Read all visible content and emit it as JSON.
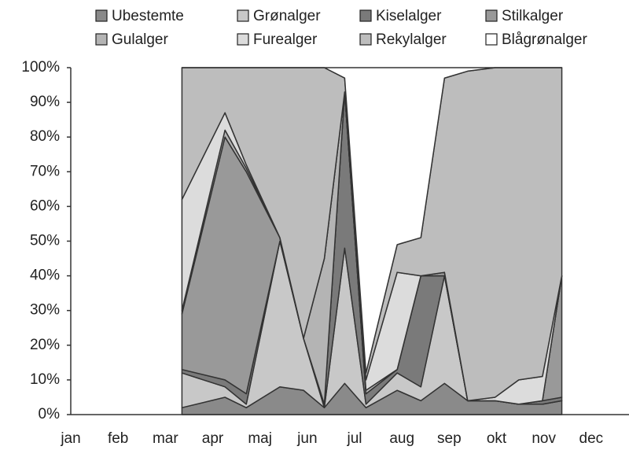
{
  "chart_data": {
    "type": "stacked_area",
    "x": [
      3.35,
      4.26,
      4.71,
      5.42,
      5.92,
      6.36,
      6.79,
      7.24,
      7.9,
      8.4,
      8.9,
      9.39,
      9.97,
      10.47,
      10.97,
      11.38
    ],
    "xlim": [
      1,
      12.8
    ],
    "xticks": [
      {
        "value": 1,
        "label": "jan"
      },
      {
        "value": 2,
        "label": "feb"
      },
      {
        "value": 3,
        "label": "mar"
      },
      {
        "value": 4,
        "label": "apr"
      },
      {
        "value": 5,
        "label": "maj"
      },
      {
        "value": 6,
        "label": "jun"
      },
      {
        "value": 7,
        "label": "jul"
      },
      {
        "value": 8,
        "label": "aug"
      },
      {
        "value": 9,
        "label": "sep"
      },
      {
        "value": 10,
        "label": "okt"
      },
      {
        "value": 11,
        "label": "nov"
      },
      {
        "value": 12,
        "label": "dec"
      }
    ],
    "ylim": [
      0,
      100
    ],
    "yticks": [
      {
        "value": 0,
        "label": "0%"
      },
      {
        "value": 10,
        "label": "10%"
      },
      {
        "value": 20,
        "label": "20%"
      },
      {
        "value": 30,
        "label": "30%"
      },
      {
        "value": 40,
        "label": "40%"
      },
      {
        "value": 50,
        "label": "50%"
      },
      {
        "value": 60,
        "label": "60%"
      },
      {
        "value": 70,
        "label": "70%"
      },
      {
        "value": 80,
        "label": "80%"
      },
      {
        "value": 90,
        "label": "90%"
      },
      {
        "value": 100,
        "label": "100%"
      }
    ],
    "series": [
      {
        "name": "Ubestemte",
        "color": "#8a8a8a",
        "values": [
          2,
          5,
          2,
          8,
          7,
          2,
          9,
          2,
          7,
          4,
          9,
          4,
          4,
          3,
          3,
          4
        ]
      },
      {
        "name": "Grønalger",
        "color": "#c8c8c8",
        "values": [
          10,
          3,
          1,
          42,
          15,
          0,
          39,
          1,
          5,
          4,
          31,
          0,
          0,
          0,
          0,
          0
        ]
      },
      {
        "name": "Kiselalger",
        "color": "#7a7a7a",
        "values": [
          1,
          2,
          3,
          0,
          0,
          1,
          45,
          3,
          1,
          32,
          0,
          0,
          0,
          0,
          1,
          1
        ]
      },
      {
        "name": "Stilkalger",
        "color": "#999999",
        "values": [
          16,
          70,
          64,
          1,
          0,
          0,
          0,
          0,
          0,
          0,
          1,
          0,
          0,
          0,
          0,
          35
        ]
      },
      {
        "name": "Gulalger",
        "color": "#b4b4b4",
        "values": [
          1,
          2,
          1,
          0,
          0,
          42,
          0,
          1,
          0,
          0,
          0,
          0,
          0,
          0,
          0,
          0
        ]
      },
      {
        "name": "Furealger",
        "color": "#dcdcdc",
        "values": [
          32,
          5,
          1,
          0,
          0,
          0,
          0,
          3,
          28,
          0,
          0,
          0,
          1,
          7,
          7,
          0
        ]
      },
      {
        "name": "Rekylalger",
        "color": "#bdbdbd",
        "values": [
          38,
          13,
          28,
          49,
          78,
          55,
          4,
          2,
          8,
          11,
          56,
          95,
          95,
          90,
          89,
          60
        ]
      },
      {
        "name": "Blågrønalger",
        "color": "#ffffff",
        "values": [
          0,
          0,
          0,
          0,
          0,
          0,
          3,
          88,
          51,
          49,
          3,
          1,
          0,
          0,
          0,
          0
        ]
      }
    ]
  }
}
